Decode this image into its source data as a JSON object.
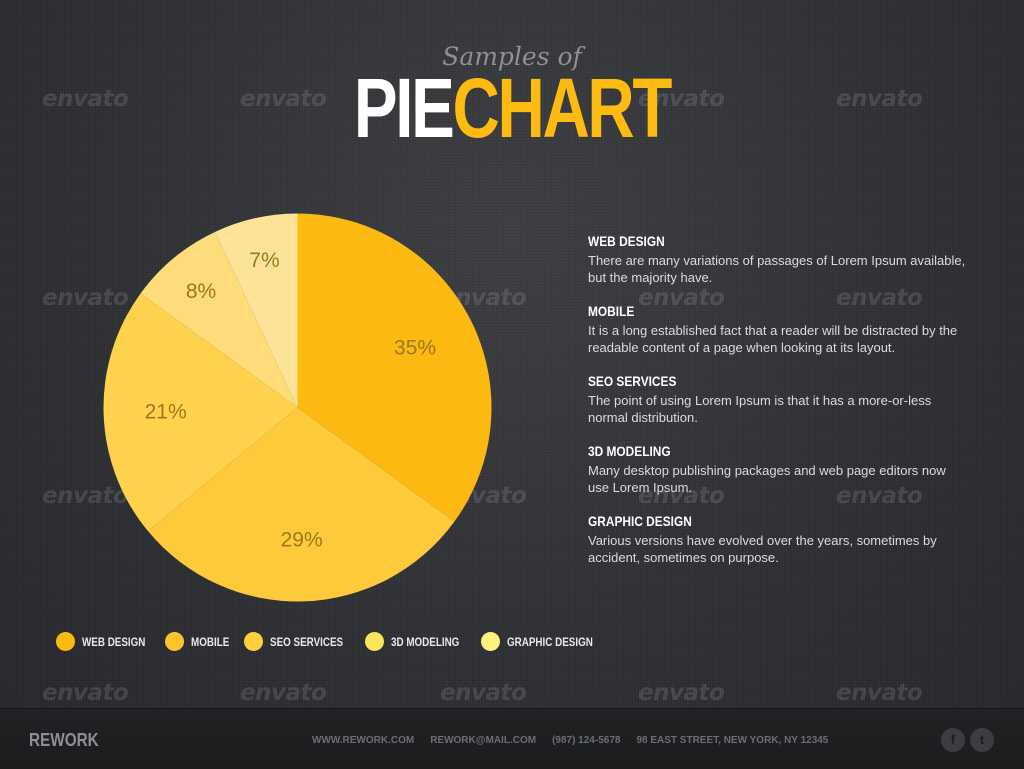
{
  "header": {
    "subtitle": "Samples of",
    "title_part1": "PIE",
    "title_part2": "CHART"
  },
  "watermark_text": "envato",
  "chart_data": {
    "type": "pie",
    "categories": [
      "WEB DESIGN",
      "MOBILE",
      "SEO SERVICES",
      "3D MODELING",
      "GRAPHIC DESIGN"
    ],
    "values": [
      35,
      29,
      21,
      8,
      7
    ],
    "value_labels": [
      "35%",
      "29%",
      "21%",
      "8%",
      "7%"
    ],
    "start": "12 o'clock, clockwise",
    "colors": [
      "#fbb912",
      "#fec93a",
      "#ffd24d",
      "#fddc79",
      "#fde398"
    ],
    "legend_colors": [
      "#fbb912",
      "#fcc42c",
      "#fdd03c",
      "#fde35a",
      "#fdf27c"
    ],
    "legend_placement": "bottom"
  },
  "descriptions": [
    {
      "title": "WEB DESIGN",
      "text": "There are many variations of passages of Lorem Ipsum available, but the majority have."
    },
    {
      "title": "MOBILE",
      "text": "It is a long established fact that a reader will be distracted by the readable content of a page when looking at its layout."
    },
    {
      "title": "SEO SERVICES",
      "text": "The point of using Lorem Ipsum is that it has a more-or-less normal distribution."
    },
    {
      "title": "3D MODELING",
      "text": "Many desktop publishing packages and web page editors now use Lorem Ipsum."
    },
    {
      "title": "GRAPHIC DESIGN",
      "text": "Various versions have evolved over the years, sometimes by accident, sometimes on purpose."
    }
  ],
  "footer": {
    "brand": "REWORK",
    "website": "WWW.REWORK.COM",
    "email": "REWORK@MAIL.COM",
    "phone": "(987) 124-5678",
    "address": "98 EAST STREET, NEW YORK, NY 12345",
    "social": [
      {
        "icon": "facebook-icon",
        "glyph": "f"
      },
      {
        "icon": "twitter-icon",
        "glyph": "t"
      }
    ]
  }
}
